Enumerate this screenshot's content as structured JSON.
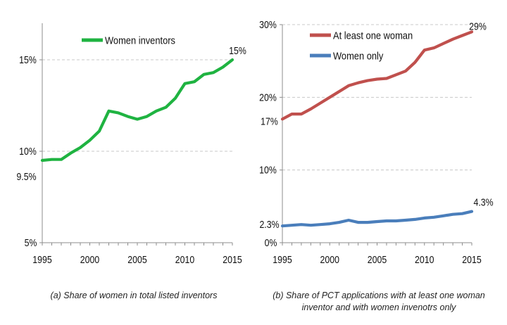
{
  "chart_data": [
    {
      "type": "line",
      "caption": "(a) Share of women in total listed inventors",
      "x": [
        1995,
        1996,
        1997,
        1998,
        1999,
        2000,
        2001,
        2002,
        2003,
        2004,
        2005,
        2006,
        2007,
        2008,
        2009,
        2010,
        2011,
        2012,
        2013,
        2014,
        2015
      ],
      "series": [
        {
          "name": "Women inventors",
          "color": "#1fb341",
          "values": [
            9.5,
            9.55,
            9.55,
            9.9,
            10.2,
            10.6,
            11.1,
            12.2,
            12.1,
            11.9,
            11.75,
            11.9,
            12.2,
            12.4,
            12.9,
            13.7,
            13.8,
            14.2,
            14.3,
            14.6,
            15.0
          ]
        }
      ],
      "ylim": [
        5,
        17
      ],
      "yticks": [
        5,
        10,
        15
      ],
      "ytick_labels": [
        "5%",
        "10%",
        "15%"
      ],
      "xticks": [
        1995,
        2000,
        2005,
        2010,
        2015
      ],
      "annotations": [
        {
          "label": "9.5%",
          "x": 1995,
          "y": 9.5
        },
        {
          "label": "15%",
          "x": 2015,
          "y": 15.0
        }
      ],
      "legend_position": "top-center",
      "grid": "horizontal dashed"
    },
    {
      "type": "line",
      "caption": "(b) Share of PCT applications with at least one woman inventor and with women invenotrs only",
      "x": [
        1995,
        1996,
        1997,
        1998,
        1999,
        2000,
        2001,
        2002,
        2003,
        2004,
        2005,
        2006,
        2007,
        2008,
        2009,
        2010,
        2011,
        2012,
        2013,
        2014,
        2015
      ],
      "series": [
        {
          "name": "At least one woman",
          "color": "#c0504d",
          "values": [
            17.0,
            17.7,
            17.7,
            18.4,
            19.2,
            20.0,
            20.8,
            21.6,
            22.0,
            22.3,
            22.5,
            22.6,
            23.1,
            23.6,
            24.8,
            26.5,
            26.8,
            27.4,
            28.0,
            28.5,
            29.0
          ]
        },
        {
          "name": "Women only",
          "color": "#4a7ebb",
          "values": [
            2.3,
            2.4,
            2.5,
            2.4,
            2.5,
            2.6,
            2.8,
            3.1,
            2.8,
            2.8,
            2.9,
            3.0,
            3.0,
            3.1,
            3.2,
            3.4,
            3.5,
            3.7,
            3.9,
            4.0,
            4.3
          ]
        }
      ],
      "ylim": [
        0,
        30
      ],
      "yticks": [
        0,
        10,
        20,
        30
      ],
      "ytick_labels": [
        "0%",
        "10%",
        "20%",
        "30%"
      ],
      "xticks": [
        1995,
        2000,
        2005,
        2010,
        2015
      ],
      "annotations": [
        {
          "label": "17%",
          "x": 1995,
          "y": 17.0
        },
        {
          "label": "29%",
          "x": 2015,
          "y": 29.0
        },
        {
          "label": "2.3%",
          "x": 1995,
          "y": 2.3
        },
        {
          "label": "4.3%",
          "x": 2015,
          "y": 4.3
        }
      ],
      "legend_position": "top-left",
      "grid": "horizontal dashed"
    }
  ]
}
